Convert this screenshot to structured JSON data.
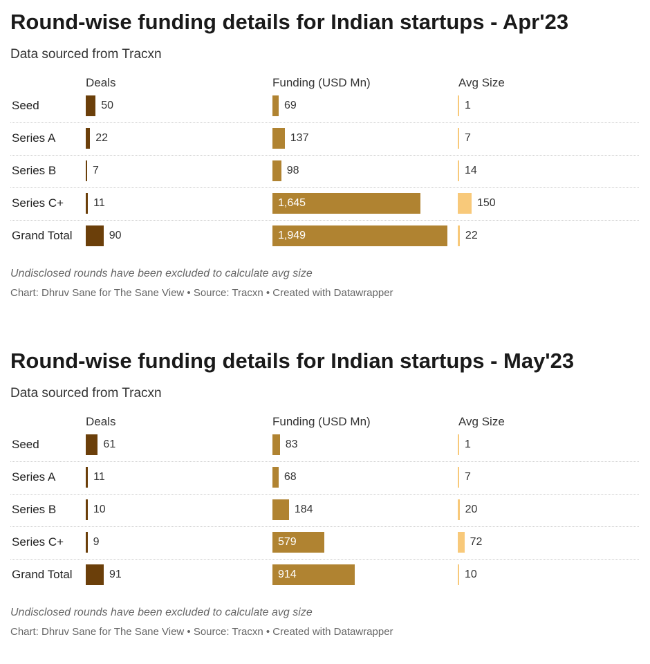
{
  "chart_data": [
    {
      "type": "table",
      "title": "Round-wise funding details for Indian startups - Apr'23",
      "subtitle": "Data sourced from Tracxn",
      "columns": [
        "Deals",
        "Funding (USD Mn)",
        "Avg Size"
      ],
      "rows": [
        {
          "label": "Seed",
          "deals": 50,
          "deals_text": "50",
          "funding": 69,
          "funding_text": "69",
          "avg": 1,
          "avg_text": "1"
        },
        {
          "label": "Series A",
          "deals": 22,
          "deals_text": "22",
          "funding": 137,
          "funding_text": "137",
          "avg": 7,
          "avg_text": "7"
        },
        {
          "label": "Series B",
          "deals": 7,
          "deals_text": "7",
          "funding": 98,
          "funding_text": "98",
          "avg": 14,
          "avg_text": "14"
        },
        {
          "label": "Series C+",
          "deals": 11,
          "deals_text": "11",
          "funding": 1645,
          "funding_text": "1,645",
          "avg": 150,
          "avg_text": "150"
        },
        {
          "label": "Grand Total",
          "deals": 90,
          "deals_text": "90",
          "funding": 1949,
          "funding_text": "1,949",
          "avg": 22,
          "avg_text": "22"
        }
      ],
      "note": "Undisclosed rounds have been excluded to calculate avg size",
      "credit": "Chart: Dhruv Sane for The Sane View • Source: Tracxn • Created with Datawrapper"
    },
    {
      "type": "table",
      "title": "Round-wise funding details for Indian startups - May'23",
      "subtitle": "Data sourced from Tracxn",
      "columns": [
        "Deals",
        "Funding (USD Mn)",
        "Avg Size"
      ],
      "rows": [
        {
          "label": "Seed",
          "deals": 61,
          "deals_text": "61",
          "funding": 83,
          "funding_text": "83",
          "avg": 1,
          "avg_text": "1"
        },
        {
          "label": "Series A",
          "deals": 11,
          "deals_text": "11",
          "funding": 68,
          "funding_text": "68",
          "avg": 7,
          "avg_text": "7"
        },
        {
          "label": "Series B",
          "deals": 10,
          "deals_text": "10",
          "funding": 184,
          "funding_text": "184",
          "avg": 20,
          "avg_text": "20"
        },
        {
          "label": "Series C+",
          "deals": 9,
          "deals_text": "9",
          "funding": 579,
          "funding_text": "579",
          "avg": 72,
          "avg_text": "72"
        },
        {
          "label": "Grand Total",
          "deals": 91,
          "deals_text": "91",
          "funding": 914,
          "funding_text": "914",
          "avg": 10,
          "avg_text": "10"
        }
      ],
      "note": "Undisclosed rounds have been excluded to calculate avg size",
      "credit": "Chart: Dhruv Sane for The Sane View • Source: Tracxn • Created with Datawrapper"
    }
  ],
  "colors": {
    "deals": "#6b3f0a",
    "funding": "#b08331",
    "avg": "#f8c97a",
    "text": "#333333"
  }
}
